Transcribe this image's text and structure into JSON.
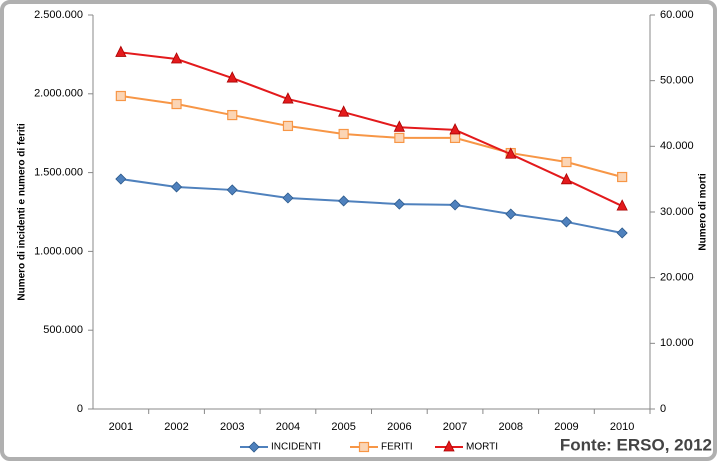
{
  "chart_data": {
    "type": "line",
    "y_label": "Numero di incidenti e numero di feriti",
    "y2_label": "Numero di morti",
    "annotation": "Fonte: ERSO, 2012",
    "categories": [
      "2001",
      "2002",
      "2003",
      "2004",
      "2005",
      "2006",
      "2007",
      "2008",
      "2009",
      "2010"
    ],
    "series": [
      {
        "name": "INCIDENTI",
        "color": "#4f81bd",
        "marker": "diamond",
        "values": [
          1459000,
          1409000,
          1390000,
          1339000,
          1320000,
          1300000,
          1295000,
          1237000,
          1187000,
          1117000
        ]
      },
      {
        "name": "FERITI",
        "color": "#f79646",
        "marker": "square",
        "values": [
          1986000,
          1935000,
          1865000,
          1796000,
          1745000,
          1720000,
          1720000,
          1624000,
          1567000,
          1472000
        ]
      },
      {
        "name": "MORTI",
        "color": "#e31a1c",
        "marker": "triangle",
        "axis": "y2",
        "values": [
          54300,
          53300,
          50400,
          47200,
          45200,
          42900,
          42500,
          38800,
          34900,
          30900
        ]
      }
    ],
    "ylim": [
      0,
      2500000
    ],
    "yticks": [
      0,
      {
        "value": 500000,
        "label": "500.000"
      },
      {
        "value": 1000000,
        "label": "1.000.000"
      },
      {
        "value": 1500000,
        "label": "1.500.000"
      },
      {
        "value": 2000000,
        "label": "2.000.000"
      },
      {
        "value": 2500000,
        "label": "2.500.000"
      }
    ],
    "y2lim": [
      0,
      60000
    ],
    "y2ticks": [
      0,
      {
        "value": 10000,
        "label": "10.000"
      },
      {
        "value": 20000,
        "label": "20.000"
      },
      {
        "value": 30000,
        "label": "30.000"
      },
      {
        "value": 40000,
        "label": "40.000"
      },
      {
        "value": 50000,
        "label": "50.000"
      },
      {
        "value": 60000,
        "label": "60.000"
      }
    ],
    "legend": "bottom"
  }
}
